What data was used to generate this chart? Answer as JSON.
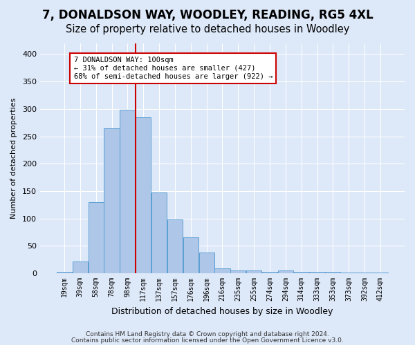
{
  "title": "7, DONALDSON WAY, WOODLEY, READING, RG5 4XL",
  "subtitle": "Size of property relative to detached houses in Woodley",
  "xlabel": "Distribution of detached houses by size in Woodley",
  "ylabel": "Number of detached properties",
  "footer_line1": "Contains HM Land Registry data © Crown copyright and database right 2024.",
  "footer_line2": "Contains public sector information licensed under the Open Government Licence v3.0.",
  "categories": [
    "19sqm",
    "39sqm",
    "58sqm",
    "78sqm",
    "98sqm",
    "117sqm",
    "137sqm",
    "157sqm",
    "176sqm",
    "196sqm",
    "216sqm",
    "235sqm",
    "255sqm",
    "274sqm",
    "294sqm",
    "314sqm",
    "333sqm",
    "353sqm",
    "373sqm",
    "392sqm",
    "412sqm"
  ],
  "values": [
    2,
    21,
    130,
    264,
    299,
    285,
    147,
    98,
    65,
    38,
    9,
    5,
    5,
    3,
    5,
    3,
    3,
    2,
    1,
    1,
    1
  ],
  "bar_color": "#aec6e8",
  "bar_edge_color": "#5a9fd4",
  "vline_color": "#cc0000",
  "vline_x": 4.5,
  "annotation_line1": "7 DONALDSON WAY: 100sqm",
  "annotation_line2": "← 31% of detached houses are smaller (427)",
  "annotation_line3": "68% of semi-detached houses are larger (922) →",
  "annotation_box_color": "#ffffff",
  "annotation_box_edge": "#cc0000",
  "ylim": [
    0,
    420
  ],
  "yticks": [
    0,
    50,
    100,
    150,
    200,
    250,
    300,
    350,
    400
  ],
  "background_color": "#dde8f8",
  "grid_color": "#ffffff",
  "title_fontsize": 12,
  "subtitle_fontsize": 10.5
}
